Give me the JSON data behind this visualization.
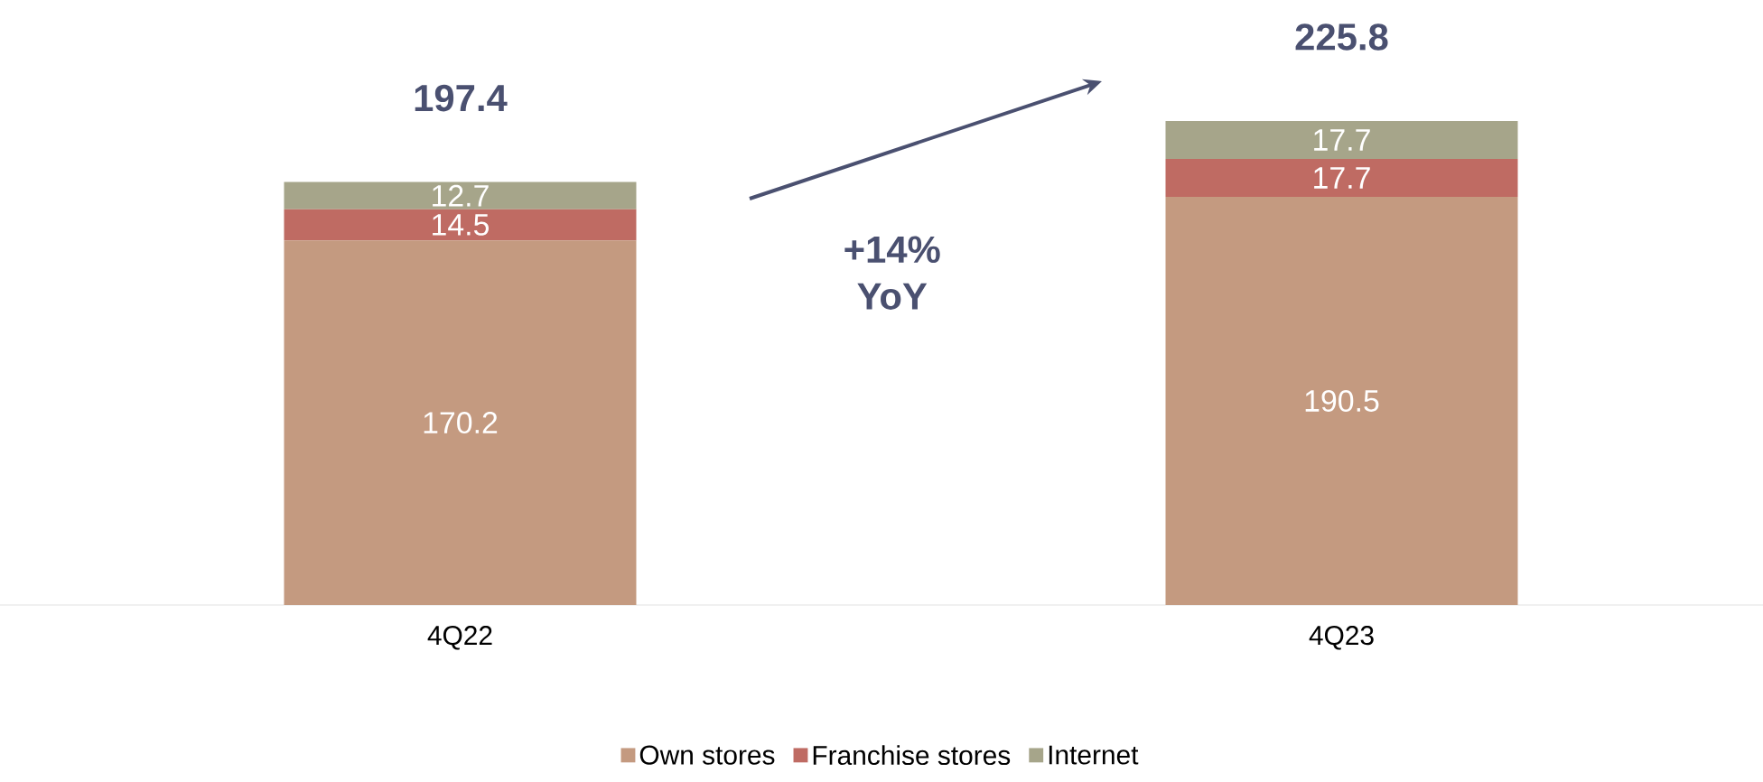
{
  "chart_data": {
    "type": "bar",
    "stacked": true,
    "categories": [
      "4Q22",
      "4Q23"
    ],
    "series": [
      {
        "name": "Own stores",
        "color": "#c49a80",
        "values": [
          170.2,
          190.5
        ]
      },
      {
        "name": "Franchise stores",
        "color": "#bf6b63",
        "values": [
          14.5,
          17.7
        ]
      },
      {
        "name": "Internet",
        "color": "#a6a58a",
        "values": [
          12.7,
          17.7
        ]
      }
    ],
    "tick_labels": "x",
    "data_labels": true,
    "totals": [
      "197.4",
      "225.8"
    ],
    "annotations": [
      "+14% YoY"
    ],
    "legend": "bottom"
  }
}
